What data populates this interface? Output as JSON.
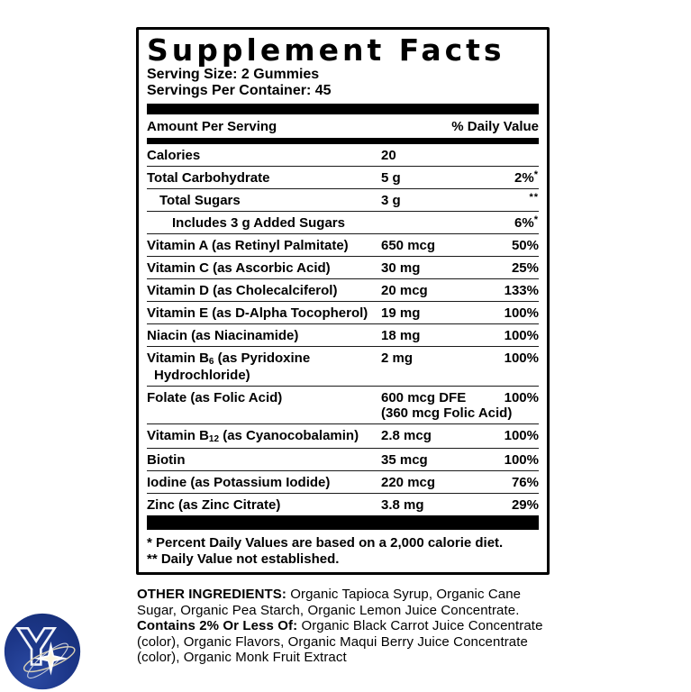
{
  "label": {
    "title": "Supplement Facts",
    "serving_size": "Serving Size: 2 Gummies",
    "servings_per_container": "Servings Per Container: 45",
    "header": {
      "amount_col": "Amount Per Serving",
      "dv_col": "% Daily Value"
    },
    "rows": [
      {
        "indent": 0,
        "name": [
          [
            "t",
            "Calories"
          ]
        ],
        "amount": "20",
        "amount2": null,
        "name2": null,
        "dv": []
      },
      {
        "indent": 0,
        "name": [
          [
            "t",
            "Total Carbohydrate"
          ]
        ],
        "amount": "5 g",
        "amount2": null,
        "name2": null,
        "dv": [
          [
            "t",
            "2%"
          ],
          [
            "sup",
            "*"
          ]
        ]
      },
      {
        "indent": 1,
        "name": [
          [
            "t",
            "Total Sugars"
          ]
        ],
        "amount": "3 g",
        "amount2": null,
        "name2": null,
        "dv": [
          [
            "sup",
            "**"
          ]
        ]
      },
      {
        "indent": 2,
        "name": [
          [
            "t",
            "Includes 3 g Added Sugars"
          ]
        ],
        "amount": "",
        "amount2": null,
        "name2": null,
        "dv": [
          [
            "t",
            "6%"
          ],
          [
            "sup",
            "*"
          ]
        ]
      },
      {
        "indent": 0,
        "name": [
          [
            "t",
            "Vitamin A (as Retinyl Palmitate)"
          ]
        ],
        "amount": "650 mcg",
        "amount2": null,
        "name2": null,
        "dv": [
          [
            "t",
            "50%"
          ]
        ]
      },
      {
        "indent": 0,
        "name": [
          [
            "t",
            "Vitamin C (as Ascorbic Acid)"
          ]
        ],
        "amount": "30 mg",
        "amount2": null,
        "name2": null,
        "dv": [
          [
            "t",
            "25%"
          ]
        ]
      },
      {
        "indent": 0,
        "name": [
          [
            "t",
            "Vitamin D (as Cholecalciferol)"
          ]
        ],
        "amount": "20 mcg",
        "amount2": null,
        "name2": null,
        "dv": [
          [
            "t",
            "133%"
          ]
        ]
      },
      {
        "indent": 0,
        "name": [
          [
            "t",
            "Vitamin E (as D-Alpha Tocopherol)"
          ]
        ],
        "amount": "19 mg",
        "amount2": null,
        "name2": null,
        "dv": [
          [
            "t",
            "100%"
          ]
        ]
      },
      {
        "indent": 0,
        "name": [
          [
            "t",
            "Niacin (as Niacinamide)"
          ]
        ],
        "amount": "18 mg",
        "amount2": null,
        "name2": null,
        "dv": [
          [
            "t",
            "100%"
          ]
        ]
      },
      {
        "indent": 0,
        "name": [
          [
            "t",
            "Vitamin B"
          ],
          [
            "sub",
            "6"
          ],
          [
            "t",
            " (as Pyridoxine"
          ]
        ],
        "name2": "Hydrochloride)",
        "amount": "2 mg",
        "amount2": null,
        "dv": [
          [
            "t",
            "100%"
          ]
        ]
      },
      {
        "indent": 0,
        "name": [
          [
            "t",
            "Folate (as Folic Acid)"
          ]
        ],
        "name2": null,
        "amount": "600 mcg DFE",
        "amount2": "(360 mcg Folic Acid)",
        "dv": [
          [
            "t",
            "100%"
          ]
        ]
      },
      {
        "indent": 0,
        "name": [
          [
            "t",
            "Vitamin B"
          ],
          [
            "sub",
            "12"
          ],
          [
            "t",
            " (as Cyanocobalamin)"
          ]
        ],
        "name2": null,
        "amount": "2.8 mcg",
        "amount2": null,
        "dv": [
          [
            "t",
            "100%"
          ]
        ]
      },
      {
        "indent": 0,
        "name": [
          [
            "t",
            "Biotin"
          ]
        ],
        "amount": "35 mcg",
        "amount2": null,
        "name2": null,
        "dv": [
          [
            "t",
            "100%"
          ]
        ]
      },
      {
        "indent": 0,
        "name": [
          [
            "t",
            "Iodine (as Potassium Iodide)"
          ]
        ],
        "amount": "220 mcg",
        "amount2": null,
        "name2": null,
        "dv": [
          [
            "t",
            "76%"
          ]
        ]
      },
      {
        "indent": 0,
        "name": [
          [
            "t",
            "Zinc (as Zinc Citrate)"
          ]
        ],
        "amount": "3.8 mg",
        "amount2": null,
        "name2": null,
        "dv": [
          [
            "t",
            "29%"
          ]
        ]
      }
    ],
    "footnote1": "* Percent Daily Values are based on a 2,000 calorie diet.",
    "footnote2": "** Daily Value not established."
  },
  "other_ingredients": {
    "lead1": "OTHER INGREDIENTS:",
    "text1": " Organic Tapioca Syrup, Organic Cane Sugar, Organic Pea Starch, Organic Lemon Juice Concentrate. ",
    "lead2": "Contains 2% Or Less Of:",
    "text2": " Organic Black Carrot Juice Concentrate (color), Organic Flavors, Organic Maqui Berry Juice Concentrate (color), Organic Monk Fruit Extract"
  },
  "logo": {
    "letter": "Y",
    "circle_color": "#1d3789",
    "circle_highlight": "#2c4ba4",
    "letter_stroke": "#f2f4fa",
    "orbit_gold": "#d9d0b4",
    "orbit_silver": "#c7ccda",
    "star_color": "#ffffff"
  }
}
